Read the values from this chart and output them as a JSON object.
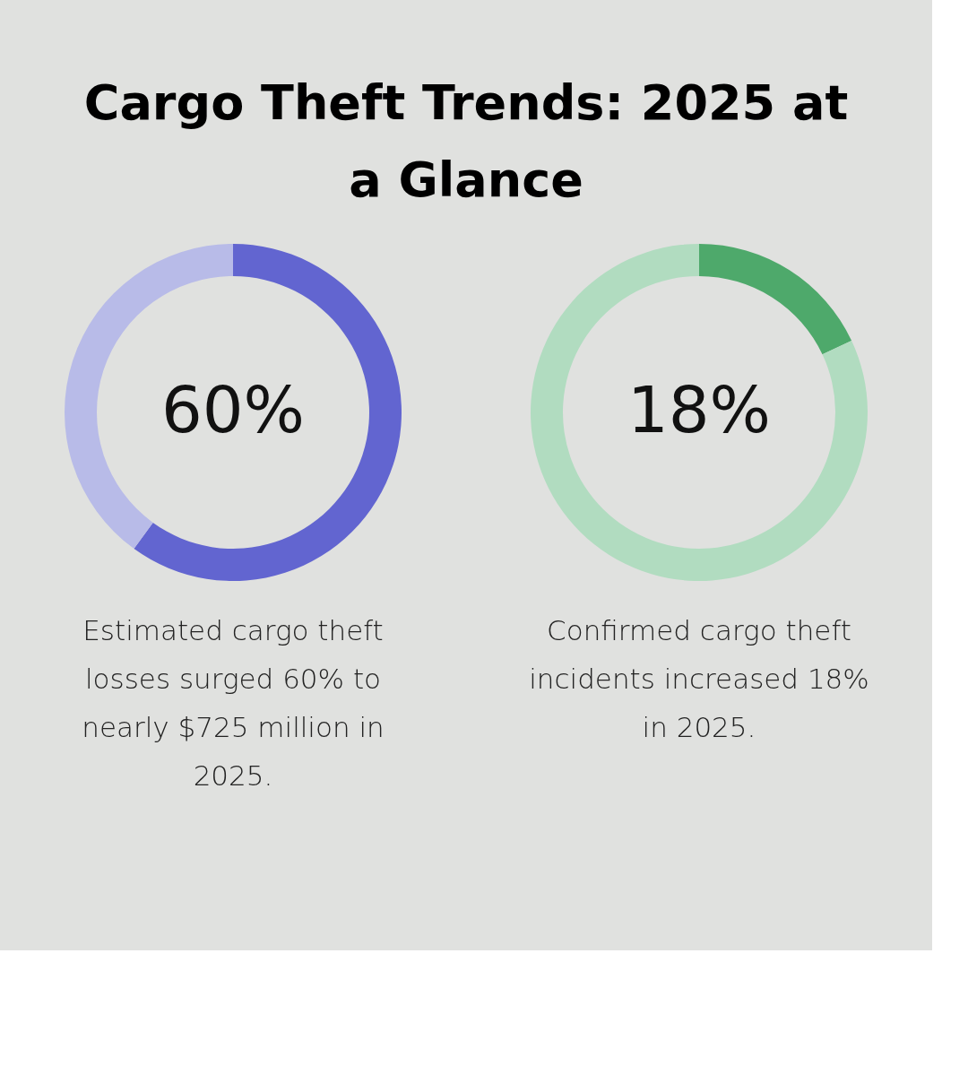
{
  "chart_data": [
    {
      "type": "donut",
      "title": "Cargo Theft Trends: 2025 at a Glance",
      "categories": [
        null,
        null
      ],
      "values": [
        60,
        40
      ],
      "colors": [
        "#6265d0",
        "#b8bbe8"
      ],
      "value_labels": [
        "60%",
        null
      ],
      "annotations": [
        "Estimated cargo theft losses surged 60% to nearly $725 million in 2025."
      ]
    },
    {
      "type": "donut",
      "categories": [
        null,
        null
      ],
      "values": [
        18,
        82
      ],
      "colors": [
        "#4ea96b",
        "#b1dcc0"
      ],
      "value_labels": [
        "18%",
        null
      ],
      "annotations": [
        "Confirmed cargo theft incidents increased 18% in 2025."
      ]
    }
  ]
}
